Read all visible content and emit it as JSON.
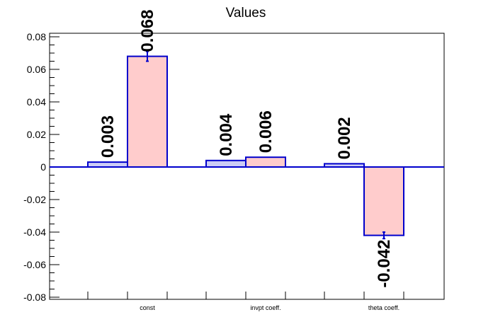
{
  "chart_data": {
    "type": "bar",
    "title": "Values",
    "xlabel": "",
    "ylabel": "",
    "categories": [
      "const",
      "invpt coeff.",
      "theta coeff."
    ],
    "ylim": [
      -0.082,
      0.082
    ],
    "yticks": [
      "0.08",
      "0.06",
      "0.04",
      "0.02",
      "0",
      "-0.02",
      "-0.04",
      "-0.06",
      "-0.08"
    ],
    "ytick_values": [
      0.08,
      0.06,
      0.04,
      0.02,
      0,
      -0.02,
      -0.04,
      -0.06,
      -0.08
    ],
    "series": [
      {
        "values": [
          0.003,
          0.004,
          0.002
        ],
        "labels": [
          "0.003",
          "0.004",
          "0.002"
        ],
        "errors": [
          0,
          0,
          0
        ],
        "fill": "#ccccf5",
        "stroke": "#0000cc"
      },
      {
        "values": [
          0.068,
          0.006,
          -0.042
        ],
        "labels": [
          "0.068",
          "0.006",
          "-0.042"
        ],
        "errors": [
          0.003,
          0,
          0.002
        ],
        "fill": "#ffcccc",
        "stroke": "#0000cc"
      }
    ],
    "grid": false,
    "zero_line_color": "#0000cc"
  }
}
